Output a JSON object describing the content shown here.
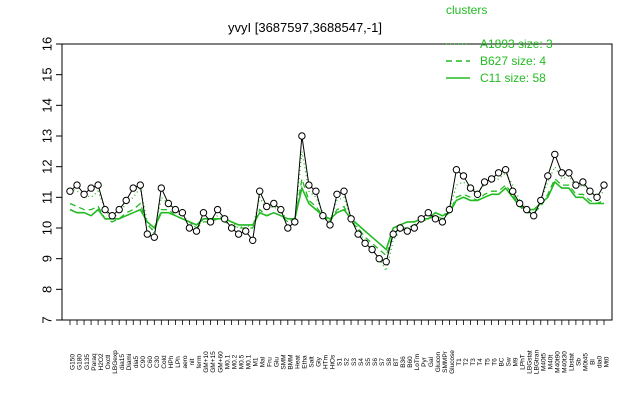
{
  "chart_data": {
    "type": "line",
    "title": "yvyI [3687597,3688547,-1]",
    "xlabel": "",
    "ylabel": "",
    "ylim": [
      7,
      16
    ],
    "yticks": [
      7,
      8,
      9,
      10,
      11,
      12,
      13,
      14,
      15,
      16
    ],
    "legend_title": "clusters",
    "legend_position": "top-right",
    "grid": false,
    "colors": {
      "series": "#22bb22",
      "points": "#000000",
      "axis": "#000000"
    },
    "x_tick_labels_shown": [
      "G150",
      "G180",
      "G135",
      "Paraq",
      "H2O2",
      "Oxctl",
      "LBGexp",
      "dia15",
      "Diami",
      "dia5",
      "C90",
      "C60",
      "C30",
      "Cold",
      "HPh",
      "LPh",
      "aero",
      "nit",
      "ferm",
      "GM+10",
      "GM+15",
      "GM+60",
      "M0.1",
      "M0.2",
      "M0.5",
      "M0.1",
      "M1",
      "Mal",
      "Fru",
      "Glu",
      "SMM",
      "BMM",
      "Heat",
      "Etha",
      "Salt",
      "Gly",
      "HTm",
      "HiOs",
      "S1",
      "S2",
      "S3",
      "S4",
      "S5",
      "S6",
      "S7",
      "S8",
      "BT",
      "B36",
      "B60",
      "LoTm",
      "Pyr",
      "Gal",
      "Glucon",
      "SMMPr",
      "Glucose",
      "T1",
      "T2",
      "T3",
      "T4",
      "T5",
      "T6",
      "BC",
      "Sw",
      "M9",
      "LPhT",
      "LBGstat",
      "LBGtran",
      "M40t5",
      "M40t",
      "M40t90",
      "M40t30",
      "Lbstat",
      "Sb",
      "M0t45",
      "Bl",
      "dia0",
      "Mt0"
    ],
    "series": [
      {
        "name": "A1893 size: 3",
        "style": "dotted",
        "values": [
          11.3,
          11.2,
          11.1,
          11.0,
          11.2,
          10.6,
          10.3,
          10.5,
          10.8,
          11.0,
          11.3,
          10.2,
          9.8,
          11.0,
          10.8,
          10.5,
          10.4,
          10.2,
          10.0,
          10.3,
          10.3,
          10.4,
          10.3,
          10.2,
          10.0,
          10.1,
          10.0,
          11.0,
          10.6,
          10.7,
          10.5,
          10.3,
          10.2,
          12.5,
          11.2,
          11.0,
          10.5,
          10.2,
          10.9,
          11.0,
          10.3,
          10.0,
          9.5,
          9.3,
          9.0,
          8.6,
          9.6,
          9.9,
          10.0,
          10.1,
          10.2,
          10.3,
          10.5,
          10.4,
          10.6,
          11.4,
          11.5,
          11.3,
          11.2,
          11.4,
          11.5,
          11.6,
          11.8,
          11.4,
          10.9,
          10.6,
          10.5,
          10.9,
          11.5,
          12.0,
          11.6,
          11.7,
          11.3,
          11.4,
          11.2,
          11.0,
          11.2
        ]
      },
      {
        "name": "B627 size: 4",
        "style": "dashed",
        "values": [
          10.8,
          10.7,
          10.6,
          10.6,
          10.7,
          10.3,
          10.2,
          10.3,
          10.5,
          10.6,
          10.8,
          10.1,
          9.9,
          10.6,
          10.6,
          10.4,
          10.3,
          10.2,
          10.0,
          10.2,
          10.2,
          10.3,
          10.2,
          10.1,
          10.0,
          10.0,
          10.0,
          10.6,
          10.4,
          10.5,
          10.4,
          10.2,
          10.2,
          11.6,
          10.9,
          10.7,
          10.4,
          10.2,
          10.6,
          10.7,
          10.2,
          10.0,
          9.7,
          9.5,
          9.3,
          9.1,
          9.8,
          10.0,
          10.0,
          10.1,
          10.2,
          10.3,
          10.4,
          10.3,
          10.5,
          11.0,
          11.1,
          11.0,
          10.9,
          11.1,
          11.2,
          11.2,
          11.4,
          11.1,
          10.7,
          10.5,
          10.5,
          10.7,
          11.1,
          11.6,
          11.4,
          11.4,
          11.1,
          11.1,
          10.9,
          10.8,
          10.9
        ]
      },
      {
        "name": "C11 size: 58",
        "style": "solid",
        "values": [
          10.6,
          10.5,
          10.5,
          10.4,
          10.6,
          10.3,
          10.3,
          10.3,
          10.4,
          10.5,
          10.6,
          10.2,
          10.0,
          10.5,
          10.5,
          10.4,
          10.3,
          10.2,
          10.1,
          10.3,
          10.3,
          10.3,
          10.3,
          10.2,
          10.1,
          10.1,
          10.1,
          10.5,
          10.4,
          10.5,
          10.4,
          10.3,
          10.3,
          11.3,
          10.8,
          10.6,
          10.4,
          10.3,
          10.5,
          10.6,
          10.3,
          10.1,
          9.9,
          9.7,
          9.5,
          9.3,
          10.0,
          10.1,
          10.2,
          10.2,
          10.3,
          10.3,
          10.5,
          10.4,
          10.5,
          10.9,
          11.0,
          10.9,
          10.9,
          11.0,
          11.1,
          11.1,
          11.3,
          11.0,
          10.7,
          10.6,
          10.6,
          10.8,
          11.0,
          11.5,
          11.3,
          11.3,
          11.0,
          11.0,
          10.8,
          10.8,
          10.8
        ]
      }
    ],
    "points": [
      11.2,
      11.4,
      11.1,
      11.3,
      11.4,
      10.6,
      10.4,
      10.6,
      10.9,
      11.3,
      11.4,
      9.8,
      9.7,
      11.3,
      10.8,
      10.6,
      10.5,
      10.0,
      9.9,
      10.5,
      10.2,
      10.6,
      10.3,
      10.0,
      9.8,
      9.9,
      9.6,
      11.2,
      10.7,
      10.8,
      10.6,
      10.0,
      10.2,
      13.0,
      11.4,
      11.2,
      10.4,
      10.1,
      11.1,
      11.2,
      10.3,
      9.8,
      9.5,
      9.3,
      9.0,
      8.9,
      9.8,
      10.0,
      9.9,
      10.0,
      10.3,
      10.5,
      10.3,
      10.2,
      10.6,
      11.9,
      11.7,
      11.3,
      11.1,
      11.5,
      11.6,
      11.8,
      11.9,
      11.2,
      10.8,
      10.6,
      10.4,
      10.9,
      11.7,
      12.4,
      11.8,
      11.8,
      11.4,
      11.5,
      11.2,
      11.0,
      11.4
    ]
  }
}
